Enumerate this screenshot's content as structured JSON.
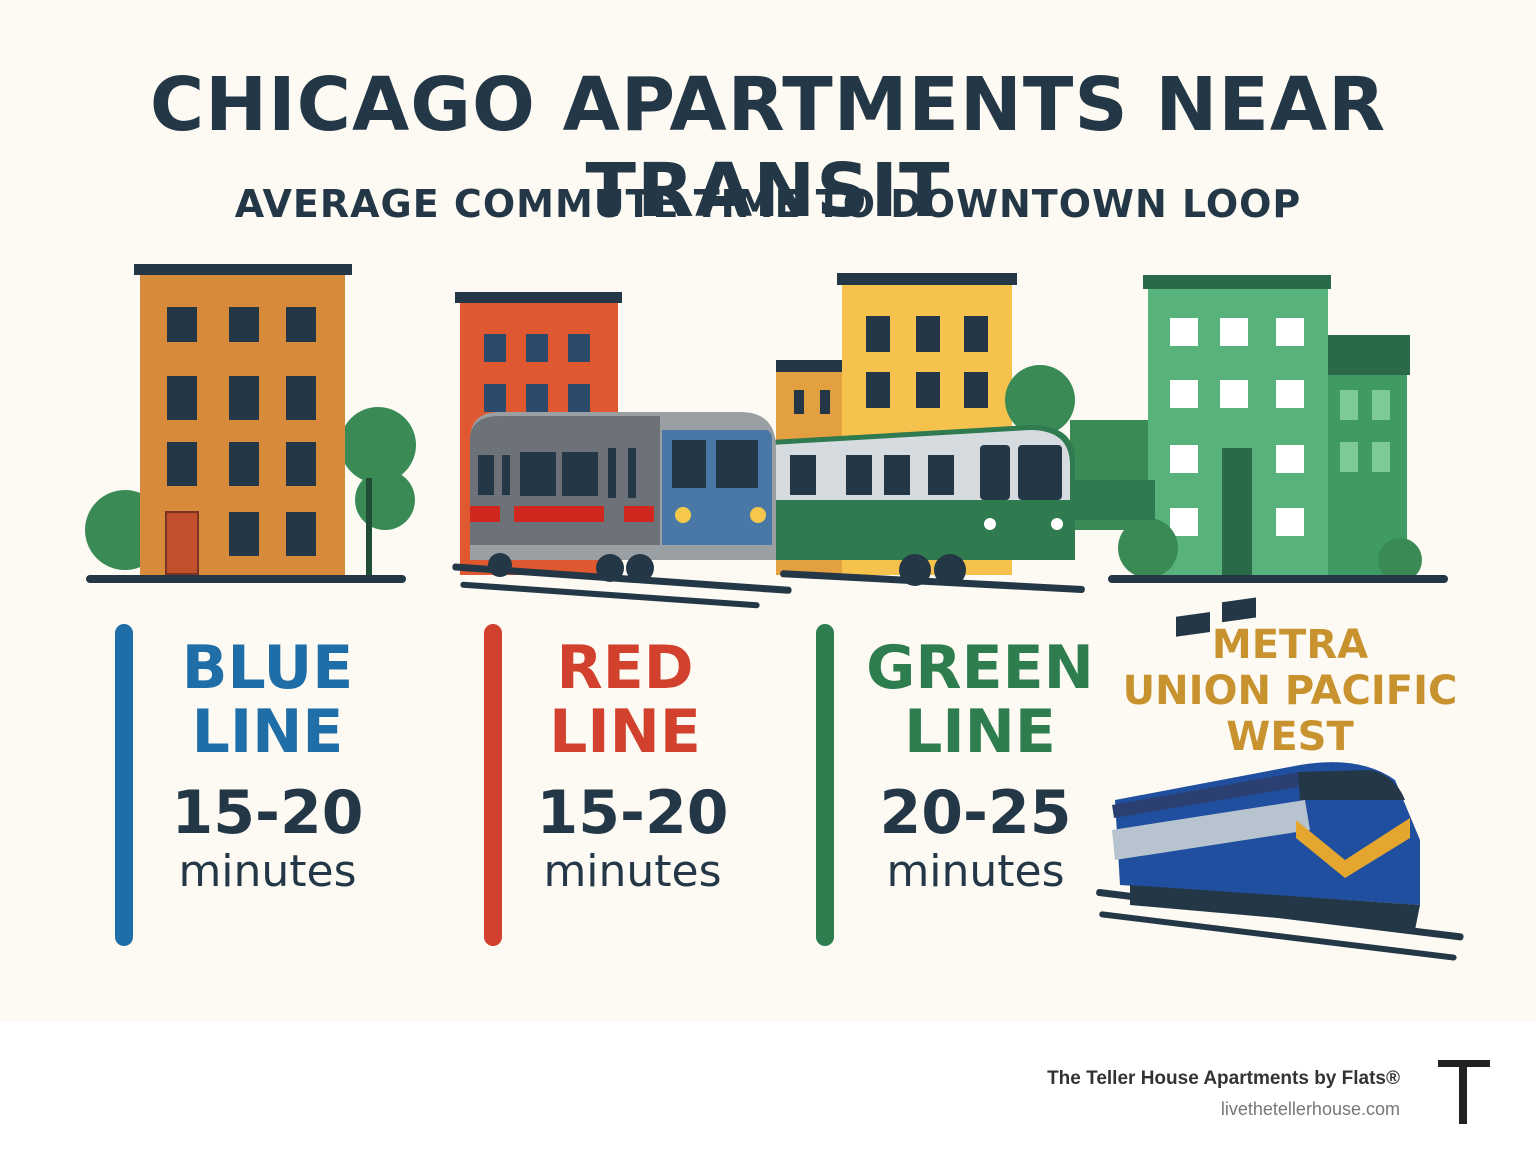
{
  "title": "CHICAGO APARTMENTS NEAR TRANSIT",
  "subtitle": "AVERAGE COMMUTE TIME TO DOWNTOWN LOOP",
  "colors": {
    "blue_line": "#1f6ea8",
    "red_line": "#d2412d",
    "green_line": "#2e7d4f",
    "metra": "#c8922f",
    "text_dark": "#233746",
    "background": "#fcfaf3"
  },
  "lines": [
    {
      "name_line1": "BLUE",
      "name_line2": "LINE",
      "time": "15-20",
      "unit": "minutes"
    },
    {
      "name_line1": "RED",
      "name_line2": "LINE",
      "time": "15-20",
      "unit": "minutes"
    },
    {
      "name_line1": "GREEN",
      "name_line2": "LINE",
      "time": "20-25",
      "unit": "minutes"
    }
  ],
  "metra": {
    "line1": "METRA",
    "line2": "UNION PACIFIC",
    "line3": "WEST"
  },
  "illustrations": [
    "apartment-building-orange",
    "apartment-building-red",
    "apartment-building-yellow",
    "apartment-building-green",
    "cta-train-icon",
    "green-train-icon",
    "metra-locomotive-icon",
    "tree-icon"
  ],
  "footer": {
    "company": "The Teller House Apartments by Flats®",
    "url": "livethetellerhouse.com",
    "logo_letter": "T"
  }
}
